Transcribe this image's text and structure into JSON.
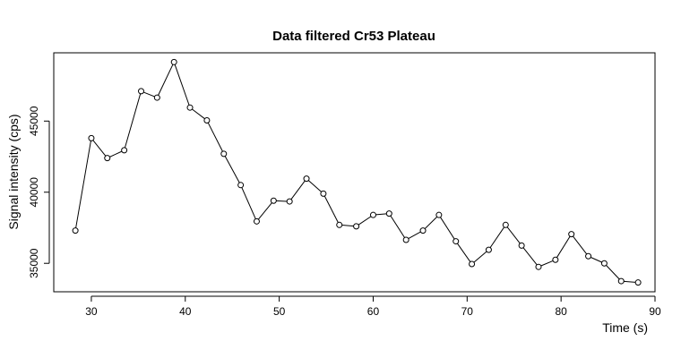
{
  "chart_data": {
    "type": "line",
    "title": "Data filtered Cr53 Plateau",
    "xlabel": "Time (s)",
    "ylabel": "Signal intensity (cps)",
    "xlim": [
      26,
      90
    ],
    "ylim": [
      33000,
      49800
    ],
    "grid": false,
    "x_ticks": [
      30,
      40,
      50,
      60,
      70,
      80,
      90
    ],
    "y_ticks": [
      35000,
      40000,
      45000
    ],
    "series": [
      {
        "x": [
          28.3,
          30.0,
          31.7,
          33.5,
          35.3,
          37.0,
          38.8,
          40.5,
          42.3,
          44.1,
          45.9,
          47.6,
          49.4,
          51.1,
          52.9,
          54.7,
          56.4,
          58.2,
          60.0,
          61.7,
          63.5,
          65.3,
          67.0,
          68.8,
          70.5,
          72.3,
          74.1,
          75.8,
          77.6,
          79.4,
          81.1,
          82.9,
          84.6,
          86.4,
          88.2
        ],
        "y": [
          37300,
          43800,
          42400,
          42950,
          47100,
          46650,
          49150,
          45950,
          45050,
          42700,
          40500,
          37950,
          39400,
          39350,
          40950,
          39900,
          37700,
          37600,
          38400,
          38500,
          36650,
          37300,
          38400,
          36550,
          34950,
          35950,
          37700,
          36250,
          34750,
          35250,
          37050,
          35500,
          35000,
          33750,
          33650
        ],
        "marker": "open-circle",
        "line_color": "#000000"
      }
    ]
  }
}
